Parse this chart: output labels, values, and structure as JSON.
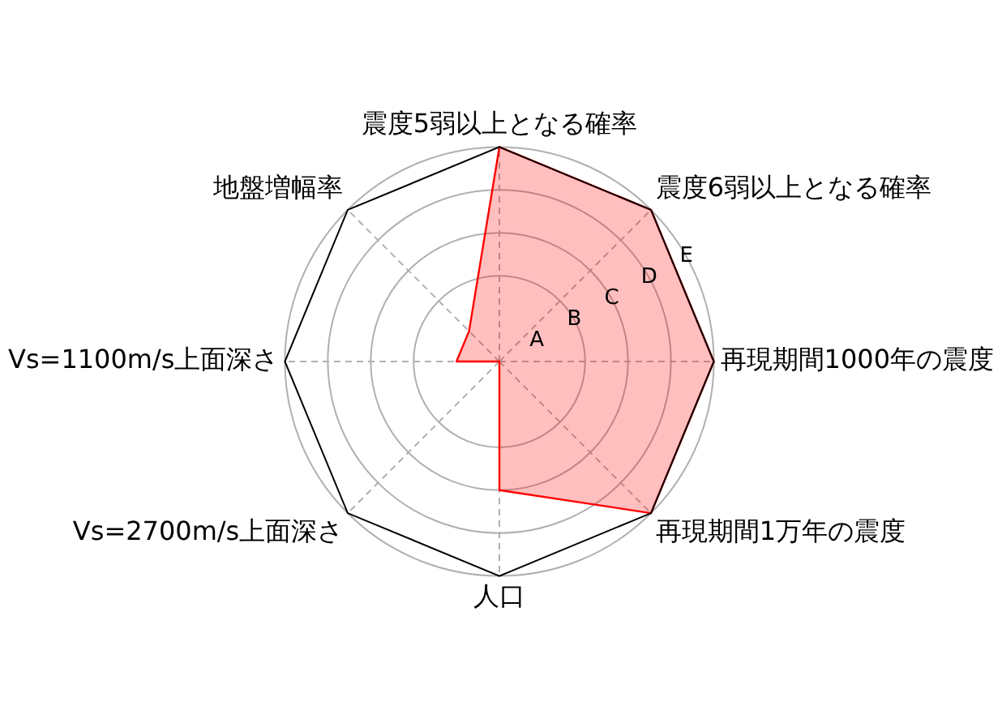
{
  "chart_data": {
    "type": "radar",
    "categories": [
      "震度5弱以上となる確率",
      "震度6弱以上となる確率",
      "再現期間1000年の震度",
      "再現期間1万年の震度",
      "人口",
      "Vs=2700m/s上面深さ",
      "Vs=1100m/s上面深さ",
      "地盤増幅率"
    ],
    "series": [
      {
        "color": "#ff0000",
        "values": [
          5,
          5,
          5,
          5,
          3,
          0,
          1,
          1
        ]
      }
    ],
    "ylim": [
      0,
      5
    ],
    "yticks": [
      {
        "value": 1,
        "label": "A"
      },
      {
        "value": 2,
        "label": "B"
      },
      {
        "value": 3,
        "label": "C"
      },
      {
        "value": 4,
        "label": "D"
      },
      {
        "value": 5,
        "label": "E"
      }
    ],
    "grid": true,
    "marker": "none",
    "line_style": "solid"
  }
}
